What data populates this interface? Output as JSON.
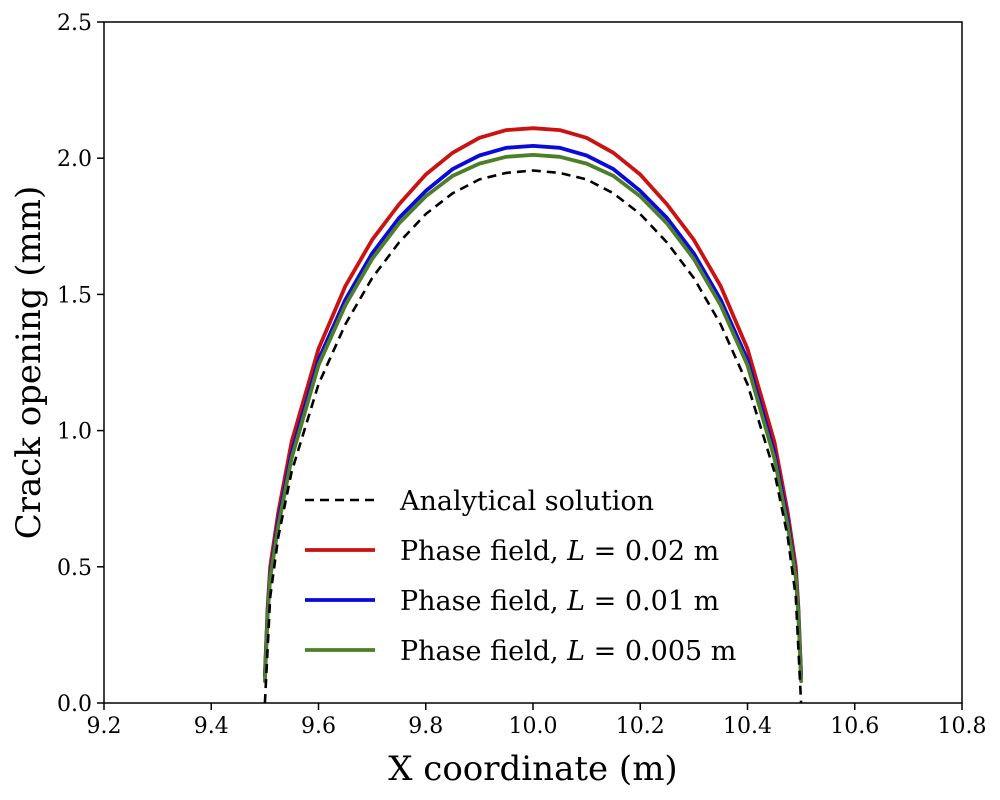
{
  "chart_data": {
    "type": "line",
    "xlabel": "X coordinate (m)",
    "ylabel": "Crack opening (mm)",
    "xlim": [
      9.2,
      10.8
    ],
    "ylim": [
      0.0,
      2.5
    ],
    "xticks": [
      9.2,
      9.4,
      9.6,
      9.8,
      10.0,
      10.2,
      10.4,
      10.6,
      10.8
    ],
    "xtick_labels": [
      "9.2",
      "9.4",
      "9.6",
      "9.8",
      "10.0",
      "10.2",
      "10.4",
      "10.6",
      "10.8"
    ],
    "yticks": [
      0.0,
      0.5,
      1.0,
      1.5,
      2.0,
      2.5
    ],
    "ytick_labels": [
      "0.0",
      "0.5",
      "1.0",
      "1.5",
      "2.0",
      "2.5"
    ],
    "legend_position": "lower-center",
    "grid": false,
    "series": [
      {
        "name": "Analytical solution",
        "color": "#000000",
        "style": "dashed",
        "x": [
          9.5,
          9.51,
          9.525,
          9.55,
          9.6,
          9.65,
          9.7,
          9.75,
          9.8,
          9.85,
          9.9,
          9.95,
          10.0,
          10.05,
          10.1,
          10.15,
          10.2,
          10.25,
          10.3,
          10.35,
          10.4,
          10.45,
          10.475,
          10.49,
          10.5
        ],
        "y": [
          0.0,
          0.389,
          0.61,
          0.85,
          1.17,
          1.39,
          1.56,
          1.69,
          1.795,
          1.871,
          1.922,
          1.946,
          1.955,
          1.946,
          1.922,
          1.871,
          1.795,
          1.69,
          1.56,
          1.39,
          1.17,
          0.85,
          0.61,
          0.389,
          0.0
        ]
      },
      {
        "name": "Phase field, L = 0.02 m",
        "legend_prefix": "Phase field, ",
        "legend_var": "L",
        "legend_suffix": " = 0.02 m",
        "color": "#cc1111",
        "style": "solid",
        "x": [
          9.5,
          9.505,
          9.51,
          9.525,
          9.55,
          9.6,
          9.65,
          9.7,
          9.75,
          9.8,
          9.85,
          9.9,
          9.95,
          10.0,
          10.05,
          10.1,
          10.15,
          10.2,
          10.25,
          10.3,
          10.35,
          10.4,
          10.45,
          10.475,
          10.49,
          10.495,
          10.5
        ],
        "y": [
          0.1,
          0.35,
          0.5,
          0.7,
          0.96,
          1.3,
          1.53,
          1.7,
          1.83,
          1.94,
          2.02,
          2.075,
          2.103,
          2.11,
          2.103,
          2.075,
          2.02,
          1.94,
          1.83,
          1.7,
          1.53,
          1.3,
          0.96,
          0.7,
          0.5,
          0.35,
          0.1
        ]
      },
      {
        "name": "Phase field, L = 0.01 m",
        "legend_prefix": "Phase field, ",
        "legend_var": "L",
        "legend_suffix": " = 0.01 m",
        "color": "#0a0adc",
        "style": "solid",
        "x": [
          9.5,
          9.505,
          9.51,
          9.525,
          9.55,
          9.6,
          9.65,
          9.7,
          9.75,
          9.8,
          9.85,
          9.9,
          9.95,
          10.0,
          10.05,
          10.1,
          10.15,
          10.2,
          10.25,
          10.3,
          10.35,
          10.4,
          10.45,
          10.475,
          10.49,
          10.495,
          10.5
        ],
        "y": [
          0.1,
          0.33,
          0.47,
          0.67,
          0.92,
          1.26,
          1.48,
          1.65,
          1.78,
          1.88,
          1.96,
          2.01,
          2.038,
          2.045,
          2.038,
          2.01,
          1.96,
          1.88,
          1.78,
          1.65,
          1.48,
          1.26,
          0.92,
          0.67,
          0.47,
          0.33,
          0.1
        ]
      },
      {
        "name": "Phase field, L = 0.005 m",
        "legend_prefix": "Phase field, ",
        "legend_var": "L",
        "legend_suffix": " = 0.005 m",
        "color": "#4d7f2a",
        "style": "solid",
        "x": [
          9.5,
          9.505,
          9.51,
          9.525,
          9.55,
          9.6,
          9.65,
          9.7,
          9.75,
          9.8,
          9.85,
          9.9,
          9.95,
          10.0,
          10.05,
          10.1,
          10.15,
          10.2,
          10.25,
          10.3,
          10.35,
          10.4,
          10.45,
          10.475,
          10.49,
          10.495,
          10.5
        ],
        "y": [
          0.08,
          0.32,
          0.46,
          0.65,
          0.9,
          1.24,
          1.46,
          1.63,
          1.76,
          1.86,
          1.935,
          1.98,
          2.005,
          2.012,
          2.005,
          1.98,
          1.935,
          1.86,
          1.76,
          1.63,
          1.46,
          1.24,
          0.9,
          0.65,
          0.46,
          0.32,
          0.08
        ]
      }
    ]
  }
}
